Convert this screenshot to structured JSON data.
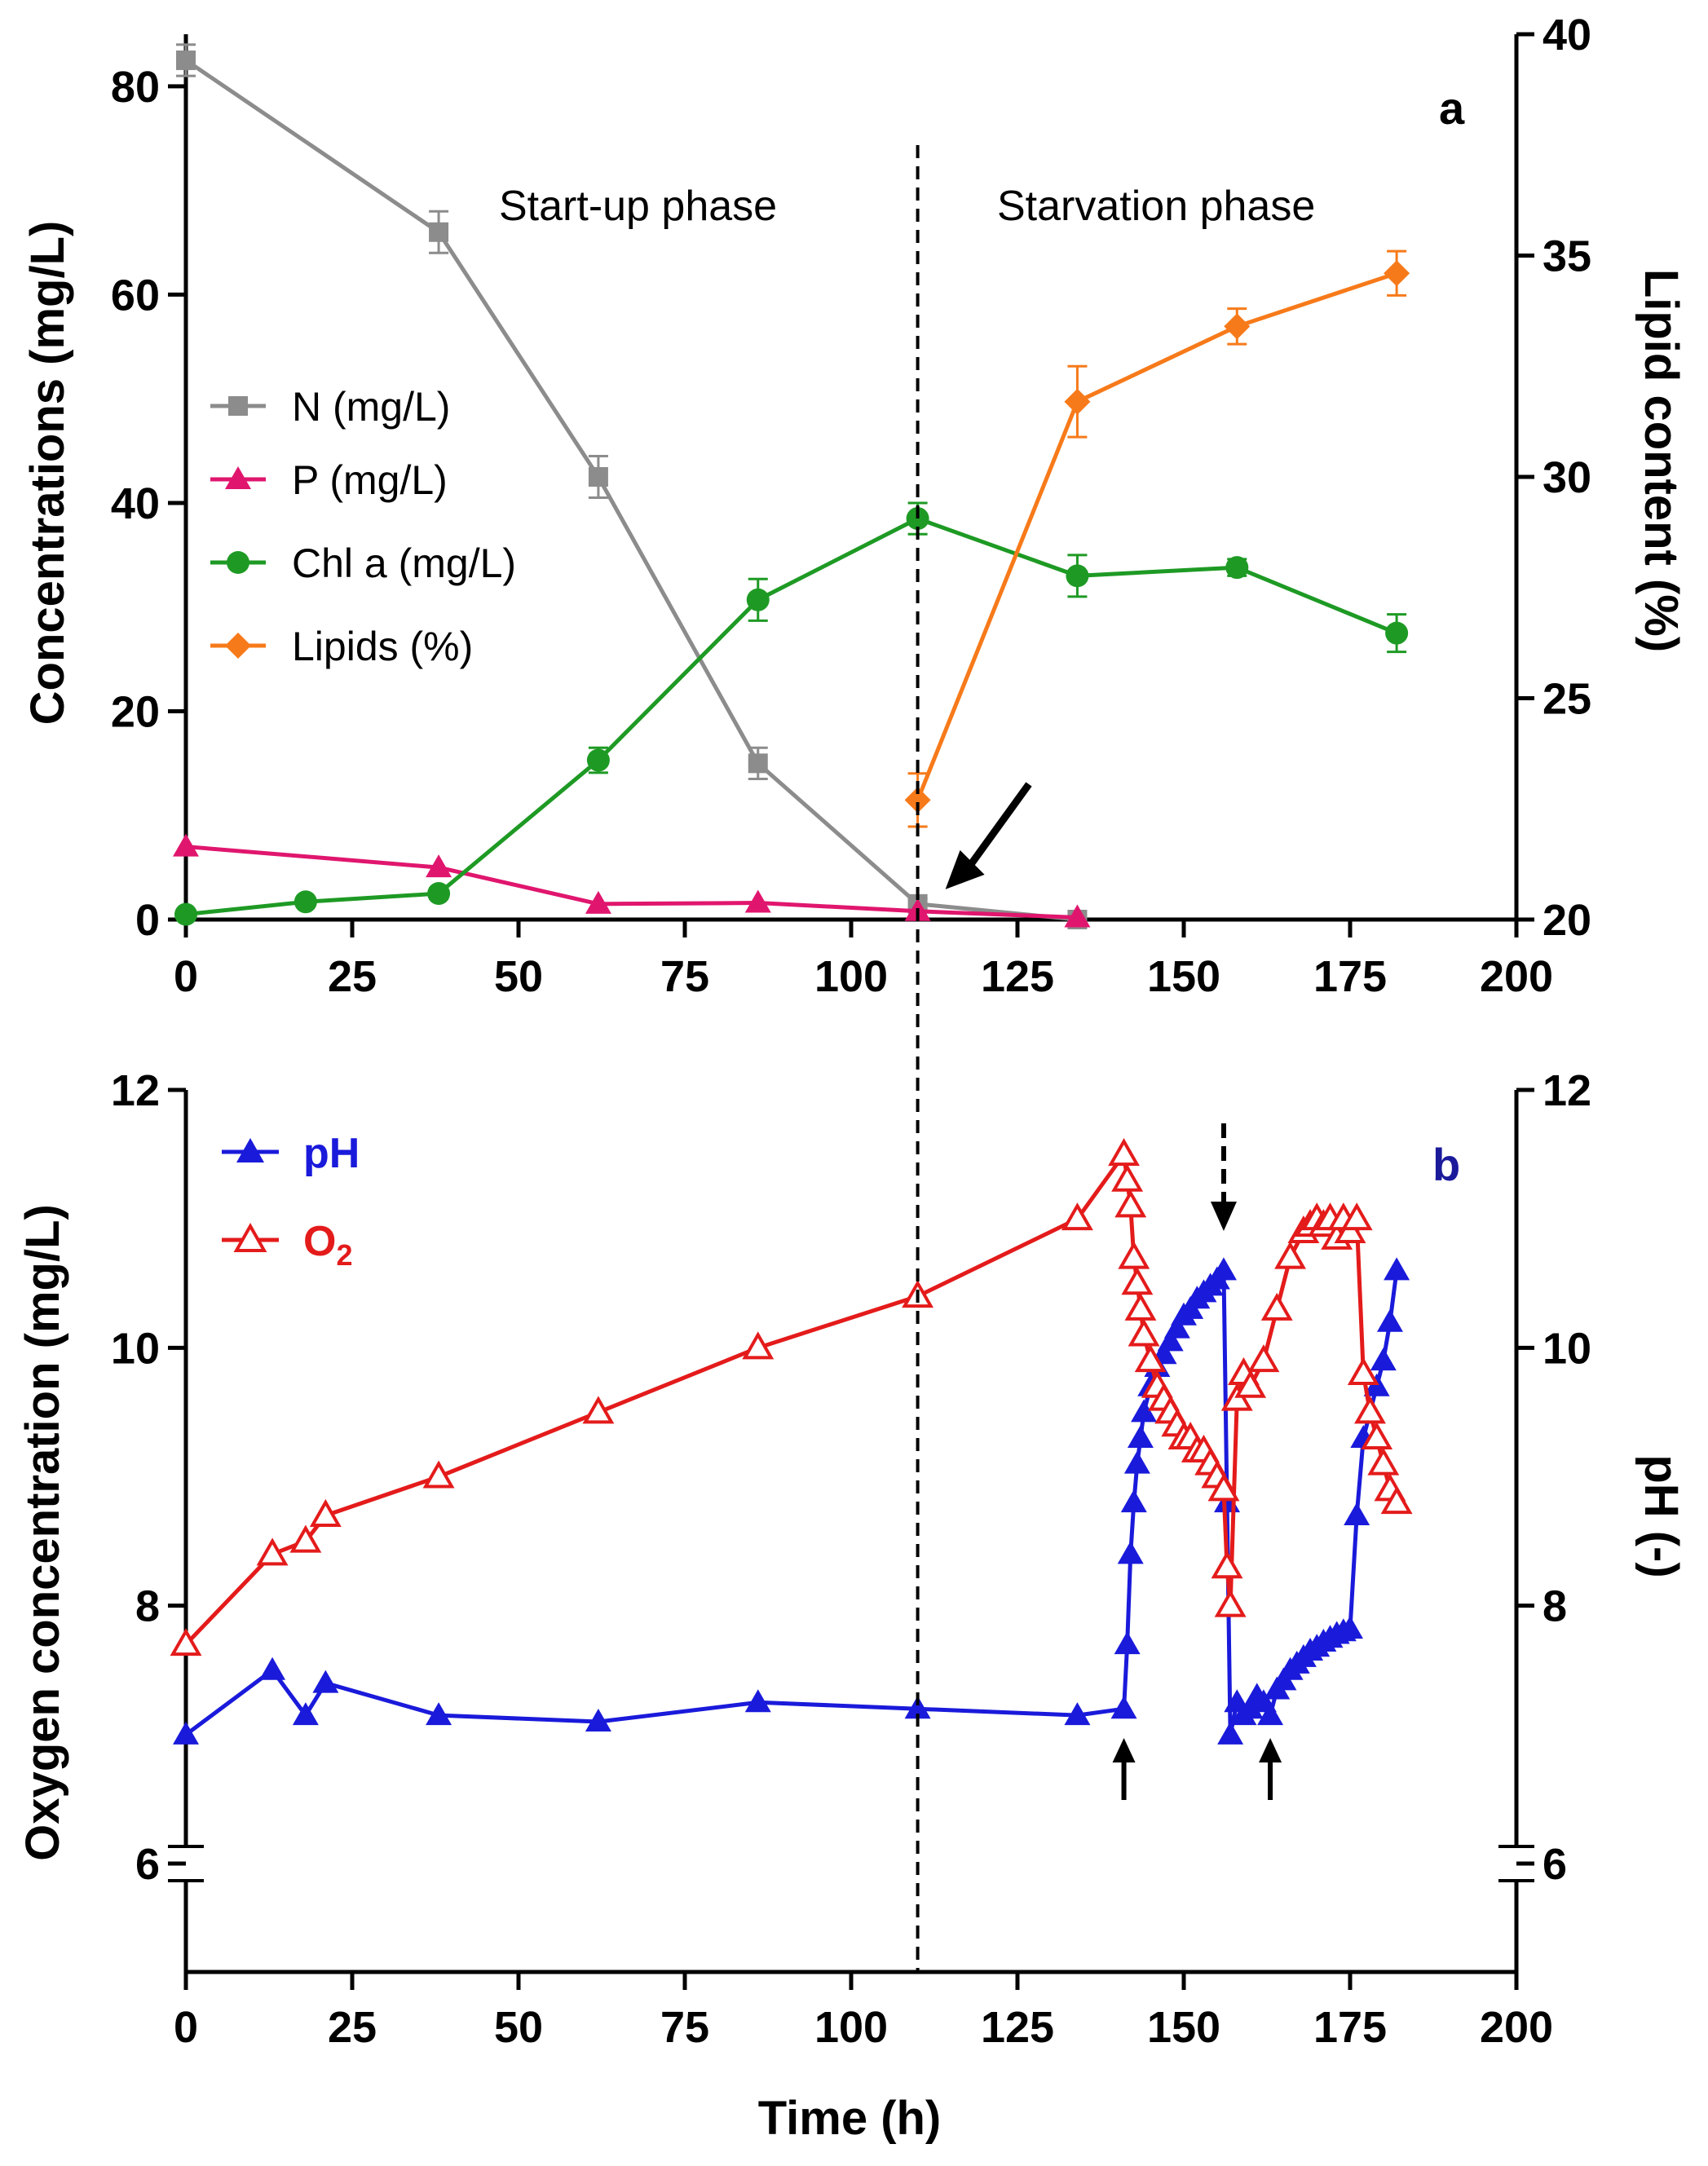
{
  "chart_data": [
    {
      "type": "line",
      "panel_label": "a",
      "xlabel": "",
      "ylabel": "Concentrations (mg/L)",
      "y2label": "Lipid content (%)",
      "xlim": [
        0,
        200
      ],
      "ylim": [
        0,
        85
      ],
      "y2lim": [
        20,
        40
      ],
      "xticks": [
        "0",
        "25",
        "50",
        "75",
        "100",
        "125",
        "150",
        "175",
        "200"
      ],
      "yticks": [
        "0",
        "20",
        "40",
        "60",
        "80"
      ],
      "y2ticks": [
        "20",
        "25",
        "30",
        "35",
        "40"
      ],
      "phase_labels": [
        "Start-up phase",
        "Starvation phase"
      ],
      "phase_boundary": 110,
      "legend_position": "middle-left",
      "series": [
        {
          "name": "N (mg/L)",
          "axis": "left",
          "color": "#8c8c8c",
          "marker": "square",
          "x": [
            0,
            38,
            62,
            86,
            110,
            134
          ],
          "y": [
            82.5,
            66,
            42.5,
            15,
            1.5,
            0
          ],
          "err": [
            1.5,
            2,
            2,
            1.5,
            0.5,
            0
          ]
        },
        {
          "name": "P (mg/L)",
          "axis": "left",
          "color": "#e0166e",
          "marker": "triangle",
          "x": [
            0,
            38,
            62,
            86,
            110,
            134
          ],
          "y": [
            7,
            5,
            1.5,
            1.6,
            0.8,
            0.2
          ],
          "err": [
            0,
            0,
            0,
            0,
            0,
            0
          ]
        },
        {
          "name": "Chl a (mg/L)",
          "axis": "left",
          "color": "#1e9a24",
          "marker": "circle",
          "x": [
            0,
            18,
            38,
            62,
            86,
            110,
            134,
            158,
            182
          ],
          "y": [
            0.5,
            1.7,
            2.5,
            15.3,
            30.7,
            38.5,
            33,
            33.8,
            27.5
          ],
          "err": [
            0.3,
            0.3,
            0.5,
            1.2,
            2,
            1.5,
            2,
            0.8,
            1.8
          ]
        },
        {
          "name": "Lipids (%)",
          "axis": "right",
          "color": "#f77a1a",
          "marker": "diamond",
          "x": [
            110,
            134,
            158,
            182
          ],
          "y": [
            22.7,
            31.7,
            33.4,
            34.6
          ],
          "err": [
            0.6,
            0.8,
            0.4,
            0.5
          ]
        }
      ]
    },
    {
      "type": "line",
      "panel_label": "b",
      "xlabel": "Time (h)",
      "ylabel": "Oxygen concentration (mg/L)",
      "y2label": "pH (-)",
      "xlim": [
        0,
        200
      ],
      "ylim": [
        5,
        12
      ],
      "y2lim": [
        5,
        12
      ],
      "xticks": [
        "0",
        "25",
        "50",
        "75",
        "100",
        "125",
        "150",
        "175",
        "200"
      ],
      "yticks": [
        "6",
        "8",
        "10",
        "12"
      ],
      "y2ticks": [
        "6",
        "8",
        "10",
        "12"
      ],
      "legend_position": "top-left",
      "series": [
        {
          "name": "pH",
          "axis": "right",
          "color": "#1a1adb",
          "marker": "triangle-filled",
          "x": [
            0,
            13,
            18,
            21,
            38,
            62,
            86,
            110,
            134,
            141,
            141.5,
            142,
            142.5,
            143,
            143.5,
            144,
            145,
            146,
            147,
            148,
            149,
            150,
            151,
            152,
            153,
            154,
            155,
            156,
            156.5,
            157,
            158,
            159,
            160,
            161,
            162,
            163,
            164,
            165,
            166,
            167,
            168,
            169,
            170,
            171,
            172,
            173,
            174,
            175,
            176,
            177,
            178,
            179,
            180,
            181,
            182
          ],
          "y": [
            7,
            7.5,
            7.15,
            7.4,
            7.15,
            7.1,
            7.25,
            7.2,
            7.15,
            7.2,
            7.7,
            8.4,
            8.8,
            9.1,
            9.3,
            9.5,
            9.7,
            9.85,
            9.95,
            10.05,
            10.15,
            10.25,
            10.3,
            10.38,
            10.43,
            10.48,
            10.53,
            10.6,
            8.8,
            7.0,
            7.25,
            7.15,
            7.2,
            7.3,
            7.25,
            7.15,
            7.35,
            7.42,
            7.5,
            7.55,
            7.6,
            7.65,
            7.68,
            7.72,
            7.75,
            7.78,
            7.8,
            7.82,
            8.7,
            9.3,
            9.5,
            9.7,
            9.9,
            10.2,
            10.6
          ]
        },
        {
          "name": "O2",
          "axis": "left",
          "color": "#e41b1b",
          "marker": "triangle-open",
          "x": [
            0,
            13,
            18,
            21,
            38,
            62,
            86,
            110,
            134,
            141,
            141.5,
            142,
            142.5,
            143,
            143.5,
            144,
            145,
            146,
            147,
            148,
            149,
            150,
            151,
            152,
            153,
            154,
            155,
            156,
            156.5,
            157,
            158,
            159,
            160,
            162,
            164,
            166,
            168,
            169,
            170,
            171,
            172,
            173,
            174,
            175,
            176,
            177,
            178,
            179,
            180,
            181,
            182
          ],
          "y": [
            7.7,
            8.4,
            8.5,
            8.7,
            9,
            9.5,
            10,
            10.4,
            11,
            11.5,
            11.3,
            11.1,
            10.7,
            10.5,
            10.3,
            10.1,
            9.9,
            9.7,
            9.6,
            9.5,
            9.4,
            9.3,
            9.3,
            9.2,
            9.2,
            9.1,
            9.0,
            8.9,
            8.3,
            8.0,
            9.6,
            9.8,
            9.7,
            9.9,
            10.3,
            10.7,
            10.9,
            10.95,
            11,
            10.95,
            11,
            10.85,
            11,
            10.9,
            11,
            9.8,
            9.5,
            9.3,
            9.1,
            8.9,
            8.8
          ]
        }
      ],
      "annotations": [
        "up-arrow-at-141h",
        "down-dashed-arrow-at-156h",
        "up-arrow-at-163h"
      ]
    }
  ],
  "legend_a": {
    "n_label": "N (mg/L)",
    "p_label": "P (mg/L)",
    "chl_label": "Chl a (mg/L)",
    "lipid_label": "Lipids (%)"
  },
  "legend_b": {
    "ph_label": "pH",
    "o2_label": "O",
    "o2_sub": "2"
  },
  "labels": {
    "panel_a": "a",
    "panel_b": "b",
    "startup": "Start-up phase",
    "starvation": "Starvation phase",
    "ylabel_a": "Concentrations (mg/L)",
    "y2label_a": "Lipid content (%)",
    "ylabel_b": "Oxygen concentration (mg/L)",
    "y2label_b": "pH (-)",
    "xlabel": "Time (h)"
  }
}
